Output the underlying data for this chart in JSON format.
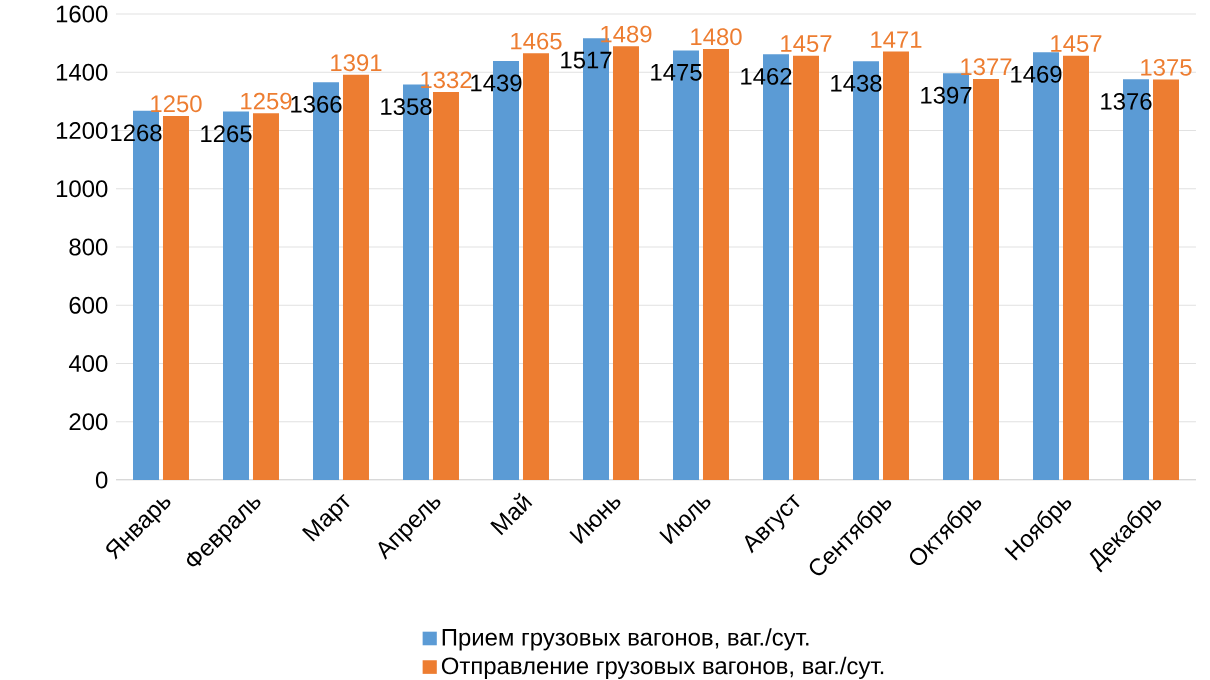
{
  "chart_data": {
    "type": "bar",
    "categories": [
      "Январь",
      "Февраль",
      "Март",
      "Апрель",
      "Май",
      "Июнь",
      "Июль",
      "Август",
      "Сентябрь",
      "Октябрь",
      "Ноябрь",
      "Декабрь"
    ],
    "series": [
      {
        "name": "Прием грузовых вагонов, ваг./сут.",
        "color": "#5b9bd5",
        "values": [
          1268,
          1265,
          1366,
          1358,
          1439,
          1517,
          1475,
          1462,
          1438,
          1397,
          1469,
          1376
        ]
      },
      {
        "name": "Отправление грузовых вагонов, ваг./сут.",
        "color": "#ed7d31",
        "values": [
          1250,
          1259,
          1391,
          1332,
          1465,
          1489,
          1480,
          1457,
          1471,
          1377,
          1457,
          1375
        ]
      }
    ],
    "ylim": [
      0,
      1600
    ],
    "yticks": [
      0,
      200,
      400,
      600,
      800,
      1000,
      1200,
      1400,
      1600
    ],
    "grid": "y",
    "legend": "bottom",
    "data_labels": true
  }
}
